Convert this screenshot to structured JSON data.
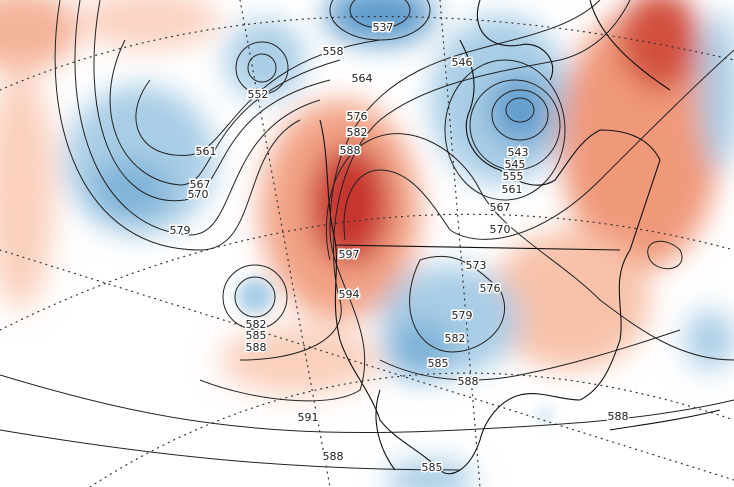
{
  "map": {
    "contour_labels": [
      "537",
      "546",
      "558",
      "552",
      "564",
      "576",
      "582",
      "588",
      "561",
      "567",
      "570",
      "579",
      "543",
      "545",
      "555",
      "561",
      "567",
      "570",
      "573",
      "576",
      "579",
      "582",
      "585",
      "588",
      "597",
      "594",
      "582",
      "585",
      "588",
      "591",
      "588",
      "585",
      "588"
    ]
  }
}
